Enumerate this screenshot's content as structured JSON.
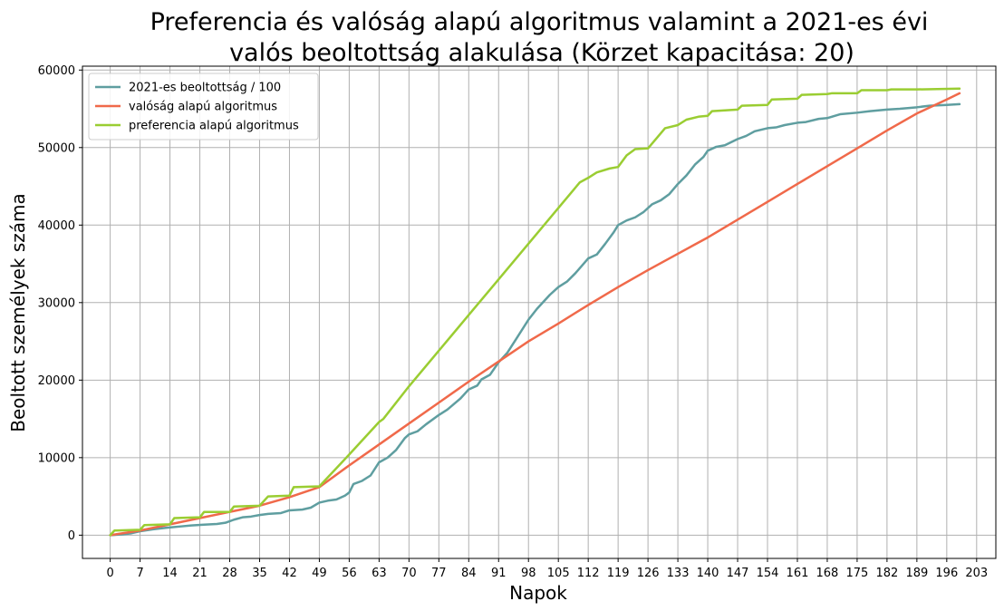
{
  "chart_data": {
    "type": "line",
    "title_lines": [
      "Preferencia és valóság alapú algoritmus valamint a 2021-es évi",
      "valós beoltottság alakulása (Körzet kapacitása: 20)"
    ],
    "xlabel": "Napok",
    "ylabel": "Beoltott személyek száma",
    "xlim": [
      -6.5,
      207.5
    ],
    "ylim": [
      -3000,
      60500
    ],
    "x_ticks": [
      0,
      7,
      14,
      21,
      28,
      35,
      42,
      49,
      56,
      63,
      70,
      77,
      84,
      91,
      98,
      105,
      112,
      119,
      126,
      133,
      140,
      147,
      154,
      161,
      168,
      175,
      182,
      189,
      196,
      203
    ],
    "y_ticks": [
      0,
      10000,
      20000,
      30000,
      40000,
      50000,
      60000
    ],
    "grid": true,
    "legend_position": "top-left",
    "series": [
      {
        "name": "2021-es beoltottság / 100",
        "color": "#5f9ea0",
        "points": [
          [
            0,
            0
          ],
          [
            3,
            100
          ],
          [
            5,
            250
          ],
          [
            7,
            500
          ],
          [
            10,
            750
          ],
          [
            13,
            950
          ],
          [
            16,
            1100
          ],
          [
            19,
            1250
          ],
          [
            22,
            1350
          ],
          [
            25,
            1450
          ],
          [
            27,
            1600
          ],
          [
            29,
            2000
          ],
          [
            31,
            2300
          ],
          [
            33,
            2400
          ],
          [
            35,
            2600
          ],
          [
            37,
            2750
          ],
          [
            40,
            2850
          ],
          [
            42,
            3200
          ],
          [
            45,
            3300
          ],
          [
            47,
            3550
          ],
          [
            49,
            4200
          ],
          [
            51,
            4450
          ],
          [
            53,
            4600
          ],
          [
            55,
            5100
          ],
          [
            56,
            5500
          ],
          [
            57,
            6600
          ],
          [
            59,
            7000
          ],
          [
            61,
            7700
          ],
          [
            63,
            9400
          ],
          [
            65,
            10000
          ],
          [
            67,
            11000
          ],
          [
            69,
            12500
          ],
          [
            70,
            13000
          ],
          [
            72,
            13400
          ],
          [
            74,
            14300
          ],
          [
            77,
            15500
          ],
          [
            79,
            16200
          ],
          [
            82,
            17600
          ],
          [
            84,
            18800
          ],
          [
            86,
            19300
          ],
          [
            87,
            20100
          ],
          [
            89,
            20700
          ],
          [
            91,
            22300
          ],
          [
            93,
            23500
          ],
          [
            95,
            25200
          ],
          [
            98,
            27800
          ],
          [
            100,
            29200
          ],
          [
            103,
            31000
          ],
          [
            105,
            32000
          ],
          [
            107,
            32700
          ],
          [
            109,
            33800
          ],
          [
            112,
            35700
          ],
          [
            114,
            36200
          ],
          [
            116,
            37600
          ],
          [
            118,
            39100
          ],
          [
            119,
            40000
          ],
          [
            121,
            40600
          ],
          [
            123,
            41000
          ],
          [
            125,
            41700
          ],
          [
            127,
            42700
          ],
          [
            129,
            43200
          ],
          [
            131,
            44000
          ],
          [
            133,
            45300
          ],
          [
            135,
            46400
          ],
          [
            137,
            47800
          ],
          [
            139,
            48800
          ],
          [
            140,
            49600
          ],
          [
            142,
            50100
          ],
          [
            144,
            50300
          ],
          [
            147,
            51100
          ],
          [
            149,
            51500
          ],
          [
            151,
            52100
          ],
          [
            154,
            52500
          ],
          [
            156,
            52600
          ],
          [
            158,
            52900
          ],
          [
            161,
            53200
          ],
          [
            163,
            53300
          ],
          [
            166,
            53700
          ],
          [
            168,
            53800
          ],
          [
            171,
            54300
          ],
          [
            175,
            54500
          ],
          [
            178,
            54700
          ],
          [
            182,
            54900
          ],
          [
            185,
            55000
          ],
          [
            189,
            55200
          ],
          [
            192,
            55400
          ],
          [
            196,
            55500
          ],
          [
            199,
            55600
          ]
        ]
      },
      {
        "name": "valóság alapú algoritmus",
        "color": "#f0694a",
        "points": [
          [
            0,
            0
          ],
          [
            7,
            600
          ],
          [
            14,
            1400
          ],
          [
            21,
            2200
          ],
          [
            28,
            3000
          ],
          [
            35,
            3800
          ],
          [
            42,
            4900
          ],
          [
            49,
            6200
          ],
          [
            56,
            9000
          ],
          [
            63,
            11700
          ],
          [
            70,
            14400
          ],
          [
            77,
            17100
          ],
          [
            84,
            19800
          ],
          [
            91,
            22400
          ],
          [
            98,
            25000
          ],
          [
            105,
            27300
          ],
          [
            112,
            29700
          ],
          [
            119,
            32000
          ],
          [
            126,
            34200
          ],
          [
            133,
            36300
          ],
          [
            140,
            38400
          ],
          [
            147,
            40700
          ],
          [
            154,
            43000
          ],
          [
            161,
            45300
          ],
          [
            168,
            47600
          ],
          [
            175,
            49900
          ],
          [
            182,
            52200
          ],
          [
            189,
            54400
          ],
          [
            196,
            56200
          ],
          [
            199,
            57000
          ]
        ]
      },
      {
        "name": "preferencia alapú algoritmus",
        "color": "#9acd32",
        "points": [
          [
            0,
            0
          ],
          [
            1,
            600
          ],
          [
            7,
            700
          ],
          [
            8,
            1300
          ],
          [
            14,
            1400
          ],
          [
            15,
            2200
          ],
          [
            21,
            2300
          ],
          [
            22,
            3000
          ],
          [
            28,
            3000
          ],
          [
            29,
            3700
          ],
          [
            35,
            3800
          ],
          [
            37,
            5000
          ],
          [
            42,
            5100
          ],
          [
            43,
            6200
          ],
          [
            49,
            6300
          ],
          [
            56,
            10400
          ],
          [
            63,
            14600
          ],
          [
            64,
            15000
          ],
          [
            70,
            19200
          ],
          [
            77,
            23800
          ],
          [
            84,
            28400
          ],
          [
            91,
            33000
          ],
          [
            98,
            37600
          ],
          [
            105,
            42200
          ],
          [
            110,
            45500
          ],
          [
            112,
            46100
          ],
          [
            114,
            46800
          ],
          [
            117,
            47300
          ],
          [
            119,
            47500
          ],
          [
            121,
            49000
          ],
          [
            123,
            49800
          ],
          [
            126,
            49900
          ],
          [
            130,
            52500
          ],
          [
            133,
            52900
          ],
          [
            135,
            53600
          ],
          [
            138,
            54000
          ],
          [
            140,
            54100
          ],
          [
            141,
            54700
          ],
          [
            147,
            54900
          ],
          [
            148,
            55400
          ],
          [
            154,
            55500
          ],
          [
            155,
            56200
          ],
          [
            161,
            56300
          ],
          [
            162,
            56800
          ],
          [
            168,
            56900
          ],
          [
            169,
            57000
          ],
          [
            175,
            57000
          ],
          [
            176,
            57400
          ],
          [
            182,
            57400
          ],
          [
            183,
            57500
          ],
          [
            189,
            57500
          ],
          [
            199,
            57600
          ]
        ]
      }
    ]
  }
}
